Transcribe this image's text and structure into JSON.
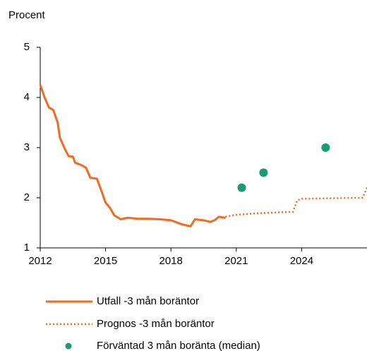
{
  "chart_data": {
    "type": "line",
    "y_label": "Procent",
    "xlim": [
      2012,
      2027
    ],
    "xticks": [
      2012,
      2015,
      2018,
      2021,
      2024
    ],
    "ylim": [
      1,
      5
    ],
    "yticks": [
      1,
      2,
      3,
      4,
      5
    ],
    "grid": false,
    "series": [
      {
        "name": "Utfall -3 mån boräntor",
        "color": "#f26b21",
        "style": "solid",
        "x": [
          2012.0,
          2012.2,
          2012.4,
          2012.6,
          2012.8,
          2012.9,
          2013.1,
          2013.3,
          2013.5,
          2013.6,
          2013.9,
          2014.1,
          2014.3,
          2014.6,
          2014.8,
          2015.0,
          2015.2,
          2015.4,
          2015.7,
          2016.0,
          2016.5,
          2017.0,
          2017.5,
          2018.0,
          2018.5,
          2018.9,
          2019.1,
          2019.5,
          2019.8,
          2020.0,
          2020.2,
          2020.5
        ],
        "values": [
          4.25,
          4.0,
          3.8,
          3.75,
          3.5,
          3.2,
          3.0,
          2.83,
          2.82,
          2.7,
          2.65,
          2.6,
          2.4,
          2.38,
          2.15,
          1.9,
          1.8,
          1.65,
          1.57,
          1.6,
          1.58,
          1.58,
          1.57,
          1.55,
          1.47,
          1.43,
          1.57,
          1.55,
          1.52,
          1.55,
          1.62,
          1.6
        ]
      },
      {
        "name": "Prognos -3 mån boräntor",
        "color": "#f26b21",
        "style": "dotted",
        "x": [
          2020.5,
          2021.0,
          2022.0,
          2023.0,
          2023.6,
          2023.8,
          2024.0,
          2026.8,
          2027.0
        ],
        "values": [
          1.62,
          1.66,
          1.69,
          1.71,
          1.72,
          1.95,
          1.98,
          2.0,
          2.2
        ]
      },
      {
        "name": "Förväntad 3 mån boränta (median)",
        "color": "#1a9c73",
        "style": "points",
        "x": [
          2021.25,
          2022.25,
          2025.1
        ],
        "values": [
          2.2,
          2.5,
          3.0
        ]
      }
    ]
  }
}
